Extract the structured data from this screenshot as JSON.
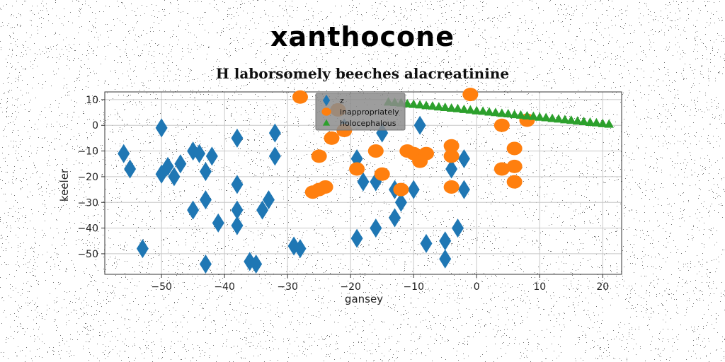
{
  "suptitle": "xanthocone",
  "chart_data": {
    "type": "scatter",
    "title": "H laborsomely beeches alacreatinine",
    "xlabel": "gansey",
    "ylabel": "keeler",
    "xlim": [
      -59,
      23
    ],
    "ylim": [
      -58,
      13
    ],
    "xticks": [
      -50,
      -40,
      -30,
      -20,
      -10,
      0,
      10,
      20
    ],
    "yticks": [
      10,
      0,
      -10,
      -20,
      -30,
      -40,
      -50
    ],
    "grid": true,
    "legend": "top-center",
    "series": [
      {
        "name": "z",
        "color": "#1f77b4",
        "marker": "diamond",
        "points": [
          [
            -56,
            -11
          ],
          [
            -55,
            -17
          ],
          [
            -50,
            -1
          ],
          [
            -50,
            -19
          ],
          [
            -49,
            -16
          ],
          [
            -48,
            -20
          ],
          [
            -47,
            -15
          ],
          [
            -45,
            -10
          ],
          [
            -44,
            -11
          ],
          [
            -43,
            -18
          ],
          [
            -42,
            -12
          ],
          [
            -45,
            -33
          ],
          [
            -43,
            -29
          ],
          [
            -41,
            -38
          ],
          [
            -38,
            -23
          ],
          [
            -38,
            -33
          ],
          [
            -38,
            -39
          ],
          [
            -38,
            -5
          ],
          [
            -36,
            -53
          ],
          [
            -35,
            -54
          ],
          [
            -34,
            -33
          ],
          [
            -33,
            -29
          ],
          [
            -32,
            -3
          ],
          [
            -32,
            -12
          ],
          [
            -53,
            -48
          ],
          [
            -43,
            -54
          ],
          [
            -29,
            -47
          ],
          [
            -28,
            -48
          ],
          [
            -19,
            -44
          ],
          [
            -19,
            -13
          ],
          [
            -18,
            -22
          ],
          [
            -16,
            -40
          ],
          [
            -16,
            -22
          ],
          [
            -15,
            -3
          ],
          [
            -13,
            -36
          ],
          [
            -13,
            -25
          ],
          [
            -12,
            -30
          ],
          [
            -10,
            -25
          ],
          [
            -9,
            0
          ],
          [
            -8,
            -46
          ],
          [
            -5,
            -45
          ],
          [
            -5,
            -52
          ],
          [
            -4,
            -17
          ],
          [
            -3,
            -40
          ],
          [
            -2,
            -13
          ],
          [
            -2,
            -25
          ],
          [
            -21,
            -1
          ]
        ]
      },
      {
        "name": "inappropriately",
        "color": "#ff7f0e",
        "marker": "circle",
        "points": [
          [
            -28,
            11
          ],
          [
            -26,
            -26
          ],
          [
            -25,
            -25
          ],
          [
            -24,
            -24
          ],
          [
            -25,
            -12
          ],
          [
            -23,
            -5
          ],
          [
            -22,
            6
          ],
          [
            -21,
            -2
          ],
          [
            -19,
            -17
          ],
          [
            -16,
            -10
          ],
          [
            -15,
            -19
          ],
          [
            -12,
            -25
          ],
          [
            -11,
            -10
          ],
          [
            -10,
            -11
          ],
          [
            -9,
            -12
          ],
          [
            -8,
            -11
          ],
          [
            -9,
            -14
          ],
          [
            -4,
            -8
          ],
          [
            -4,
            -12
          ],
          [
            -4,
            -24
          ],
          [
            -1,
            12
          ],
          [
            4,
            -17
          ],
          [
            4,
            0
          ],
          [
            6,
            -9
          ],
          [
            6,
            -16
          ],
          [
            6,
            -22
          ],
          [
            8,
            2
          ]
        ]
      },
      {
        "name": "holocephalous",
        "color": "#2ca02c",
        "marker": "triangle",
        "points": [
          [
            -14,
            9
          ],
          [
            -13,
            8.8
          ],
          [
            -12,
            8.6
          ],
          [
            -11,
            8.3
          ],
          [
            -10,
            8.1
          ],
          [
            -9,
            7.9
          ],
          [
            -8,
            7.6
          ],
          [
            -7,
            7.4
          ],
          [
            -6,
            7.1
          ],
          [
            -5,
            6.9
          ],
          [
            -4,
            6.6
          ],
          [
            -3,
            6.4
          ],
          [
            -2,
            6.1
          ],
          [
            -1,
            5.9
          ],
          [
            0,
            5.6
          ],
          [
            1,
            5.4
          ],
          [
            2,
            5.1
          ],
          [
            3,
            4.9
          ],
          [
            4,
            4.6
          ],
          [
            5,
            4.4
          ],
          [
            6,
            4.1
          ],
          [
            7,
            3.9
          ],
          [
            8,
            3.6
          ],
          [
            9,
            3.4
          ],
          [
            10,
            3.1
          ],
          [
            11,
            2.9
          ],
          [
            12,
            2.6
          ],
          [
            13,
            2.4
          ],
          [
            14,
            2.1
          ],
          [
            15,
            1.9
          ],
          [
            16,
            1.6
          ],
          [
            17,
            1.4
          ],
          [
            18,
            1.1
          ],
          [
            19,
            0.9
          ],
          [
            20,
            0.6
          ],
          [
            21,
            0.4
          ]
        ]
      }
    ]
  }
}
